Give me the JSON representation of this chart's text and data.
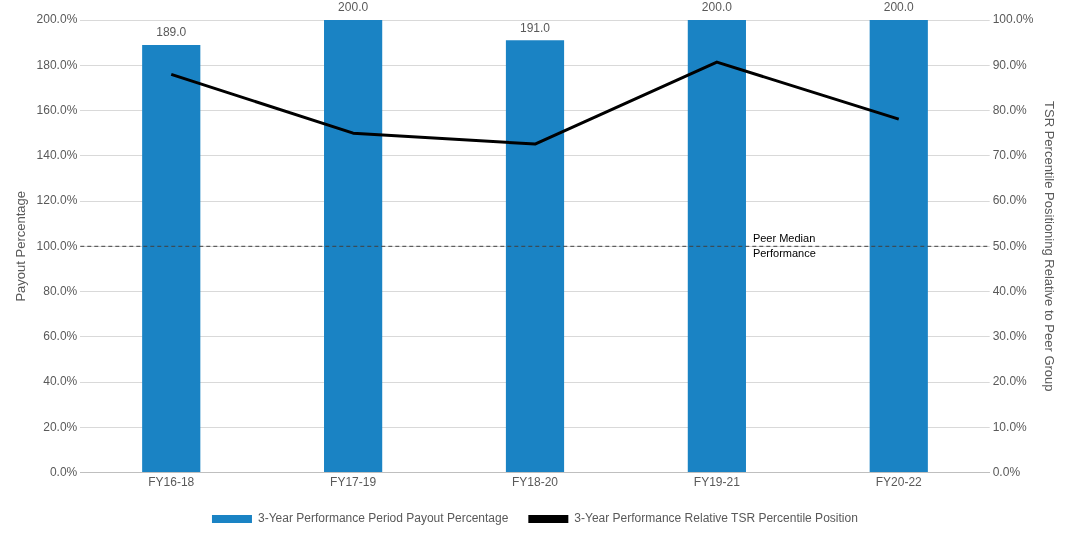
{
  "chart_data": {
    "type": "bar",
    "ylabel": "Payout Percentage",
    "y2label": "TSR Percentile Positioning Relative to Peer Group",
    "categories": [
      "FY16-18",
      "FY17-19",
      "FY18-20",
      "FY19-21",
      "FY20-22"
    ],
    "series": [
      {
        "name": "3-Year Performance Period Payout Percentage",
        "color": "#1a83c4",
        "values": [
          189,
          200,
          191,
          200,
          200
        ],
        "value_labels": [
          "189.0",
          "200.0",
          "191.0",
          "200.0",
          "200.0"
        ]
      },
      {
        "name": "3-Year Performance Relative TSR Percentile Position",
        "type": "line",
        "axis": "y2",
        "color": "#000000",
        "values": [
          88,
          75,
          72.6,
          90.7,
          78.1
        ],
        "marker": "none"
      }
    ],
    "ylim": [
      0,
      200
    ],
    "yticks": [
      {
        "value": 0,
        "label": "0.0%"
      },
      {
        "value": 20,
        "label": "20.0%"
      },
      {
        "value": 40,
        "label": "40.0%"
      },
      {
        "value": 60,
        "label": "60.0%"
      },
      {
        "value": 80,
        "label": "80.0%"
      },
      {
        "value": 100,
        "label": "100.0%"
      },
      {
        "value": 120,
        "label": "120.0%"
      },
      {
        "value": 140,
        "label": "140.0%"
      },
      {
        "value": 160,
        "label": "160.0%"
      },
      {
        "value": 180,
        "label": "180.0%"
      },
      {
        "value": 200,
        "label": "200.0%"
      }
    ],
    "y2lim": [
      0,
      100
    ],
    "y2ticks": [
      {
        "value": 0,
        "label": "0.0%"
      },
      {
        "value": 10,
        "label": "10.0%"
      },
      {
        "value": 20,
        "label": "20.0%"
      },
      {
        "value": 30,
        "label": "30.0%"
      },
      {
        "value": 40,
        "label": "40.0%"
      },
      {
        "value": 50,
        "label": "50.0%"
      },
      {
        "value": 60,
        "label": "60.0%"
      },
      {
        "value": 70,
        "label": "70.0%"
      },
      {
        "value": 80,
        "label": "80.0%"
      },
      {
        "value": 90,
        "label": "90.0%"
      },
      {
        "value": 100,
        "label": "100.0%"
      }
    ],
    "ref_lines": [
      {
        "axis": "y",
        "value": 100,
        "label": "Peer Median Performance",
        "color": "#404040",
        "line_style": "dashed"
      }
    ],
    "grid": "y",
    "legend": "bottom"
  }
}
